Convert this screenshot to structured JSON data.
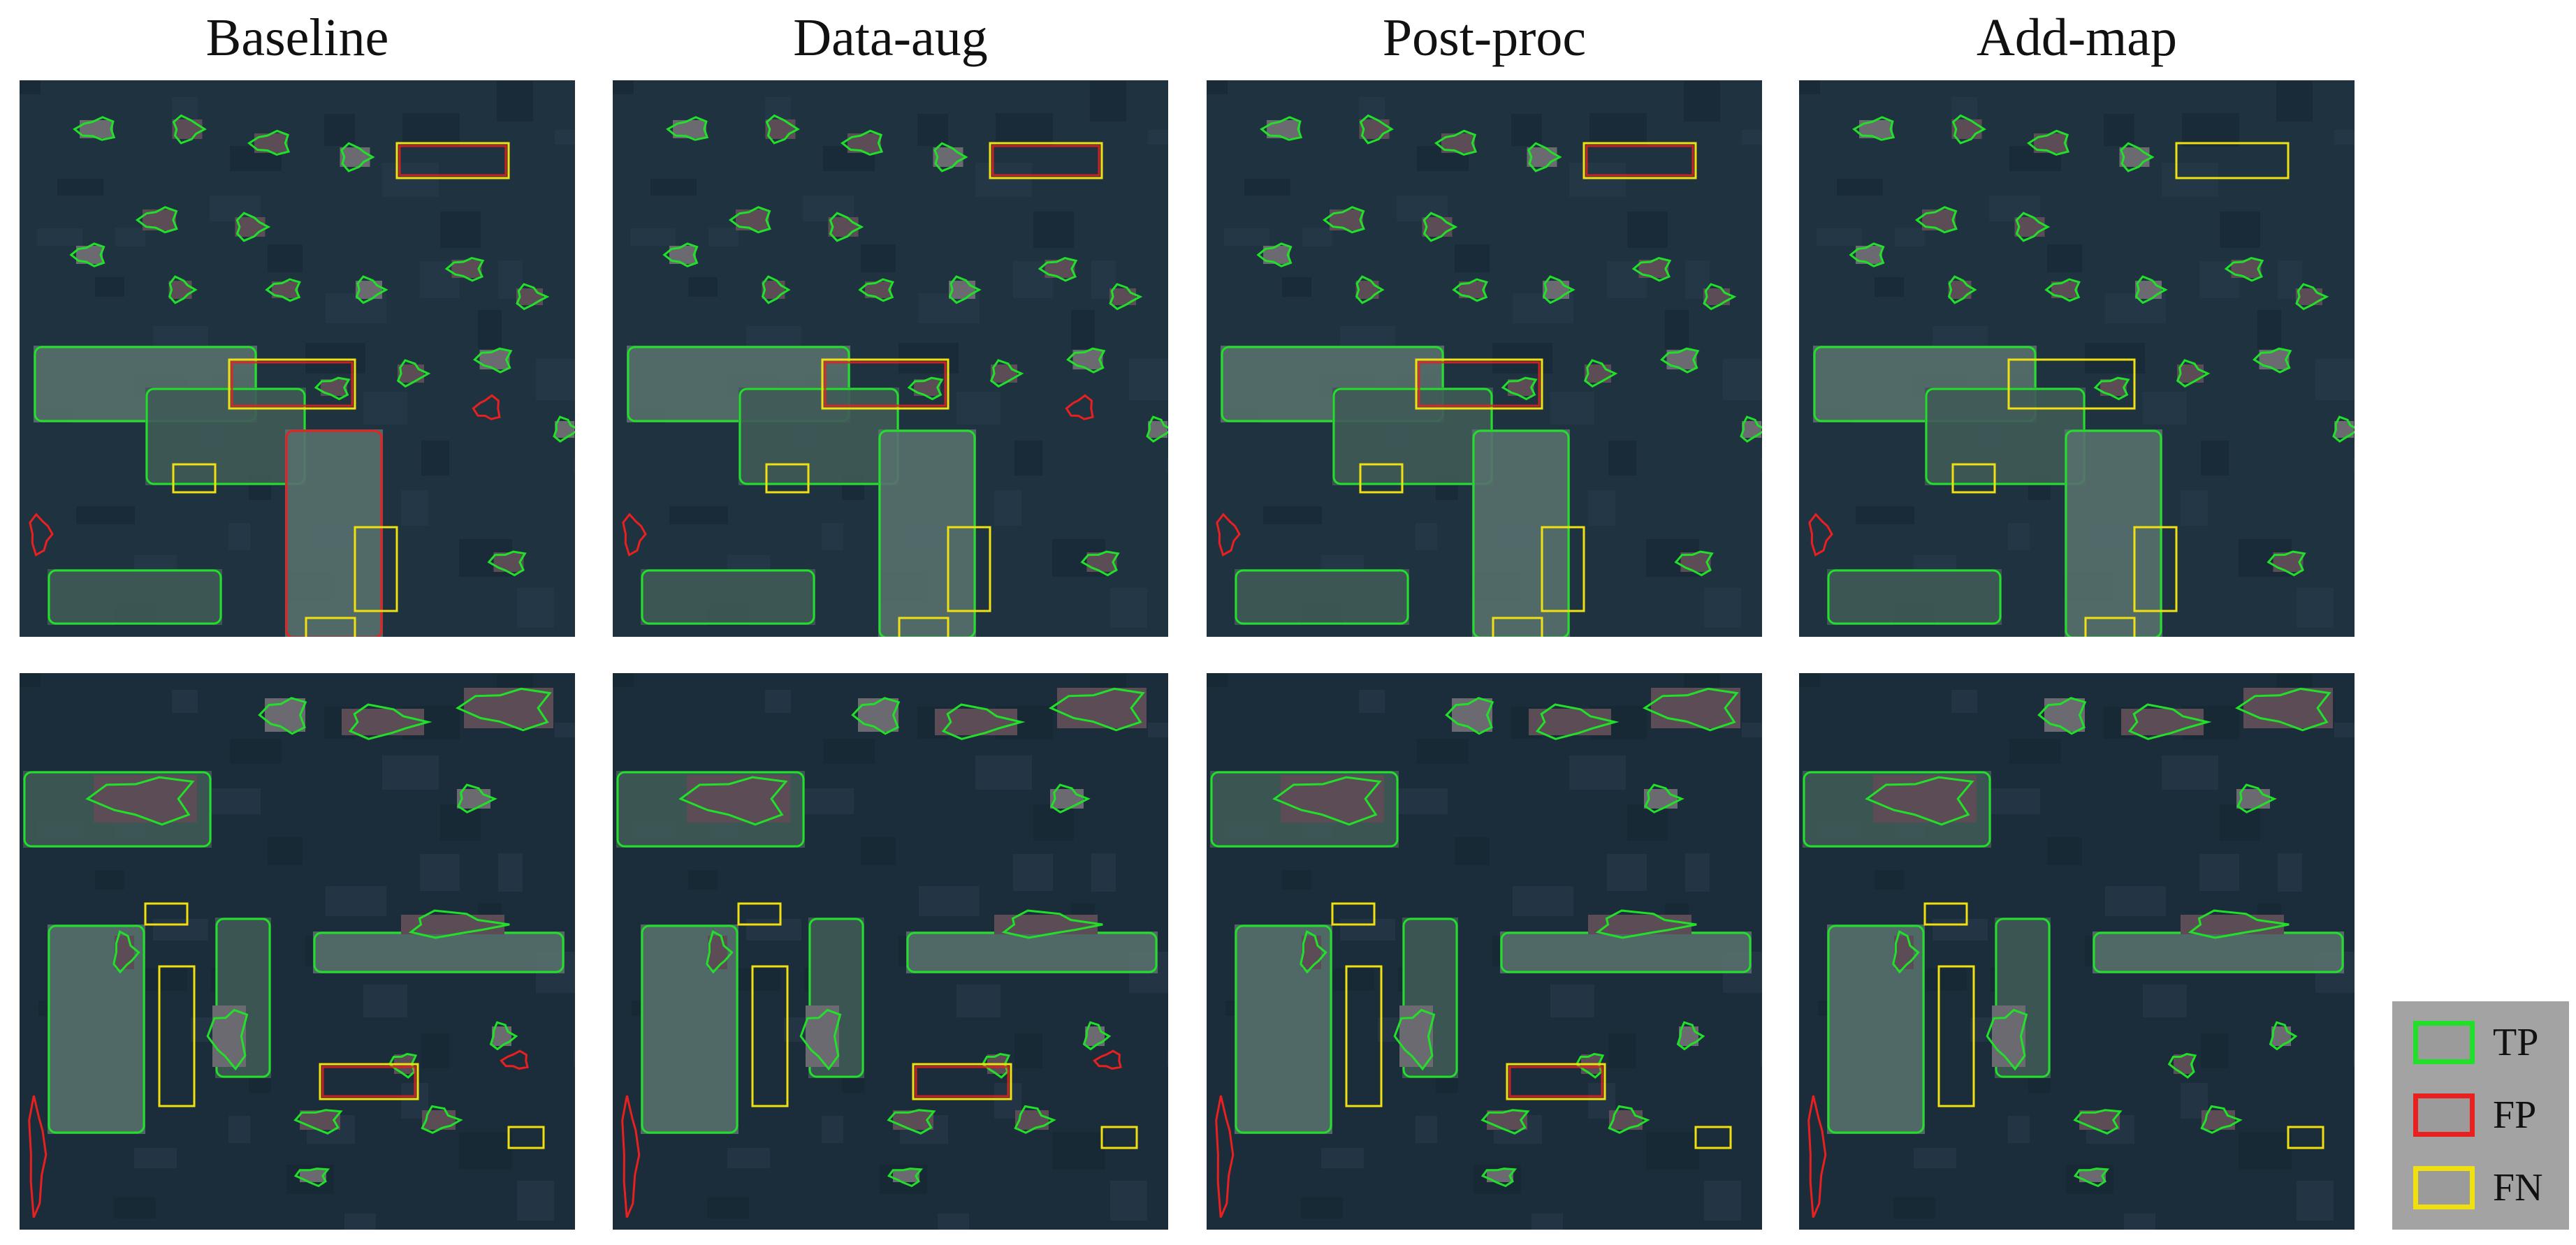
{
  "columns": [
    "Baseline",
    "Data-aug",
    "Post-proc",
    "Add-map"
  ],
  "legend": [
    {
      "label": "TP",
      "color": "#22e02a"
    },
    {
      "label": "FP",
      "color": "#e82020"
    },
    {
      "label": "FN",
      "color": "#f0e010"
    }
  ]
}
